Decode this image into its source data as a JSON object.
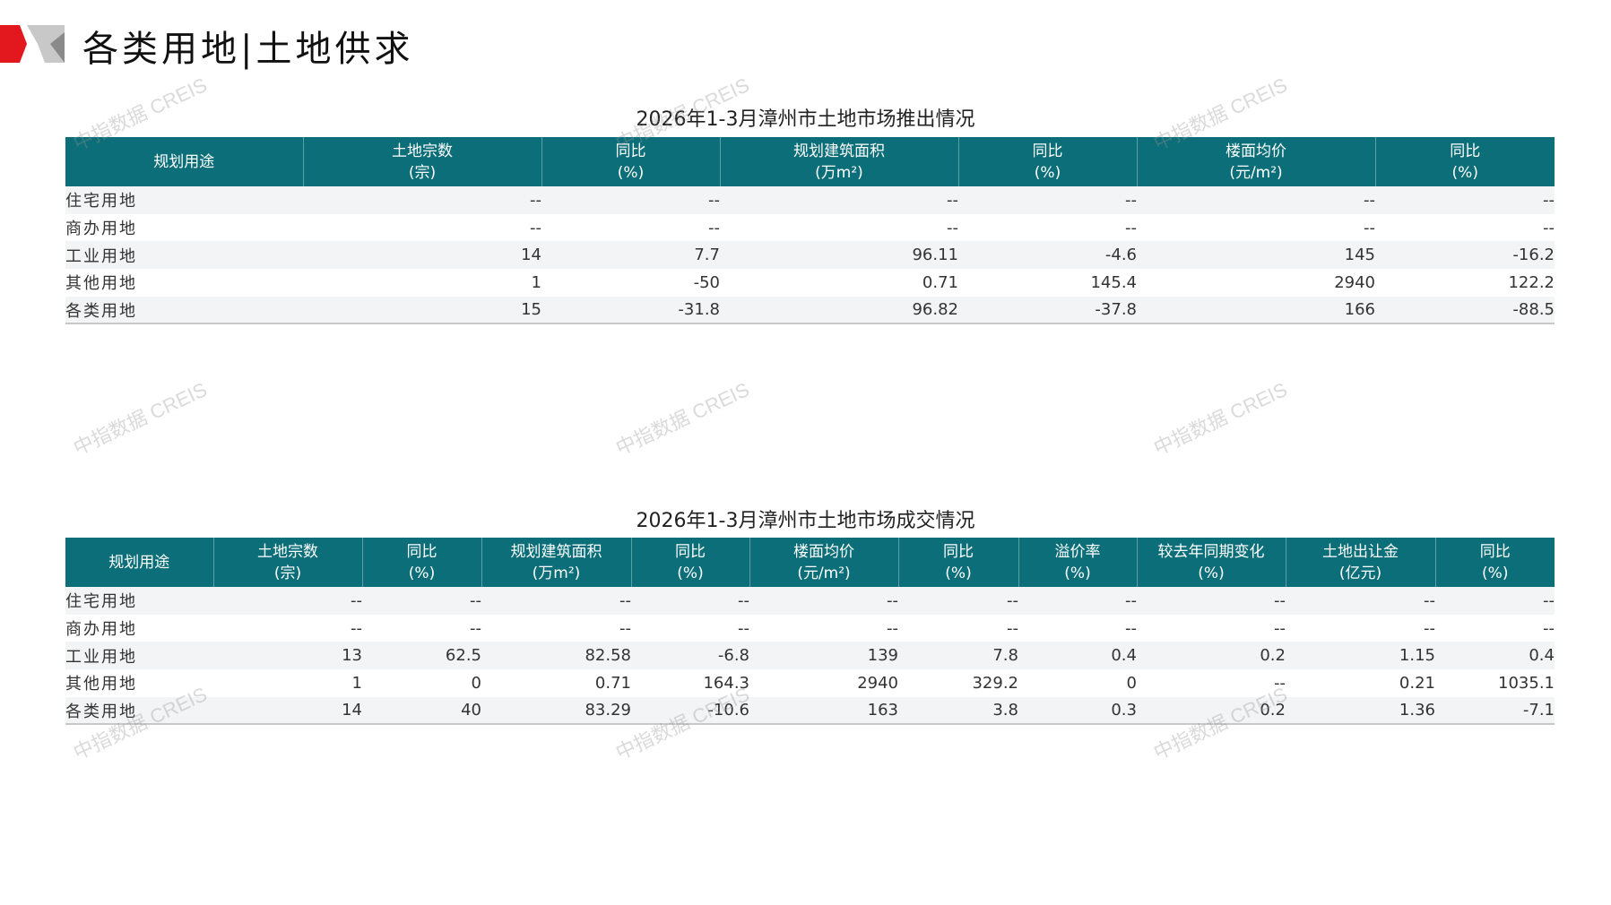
{
  "header": {
    "title": "各类用地|土地供求",
    "accent": "#e3171e",
    "teal": "#0b6e78"
  },
  "watermark": "中指数据 CREIS",
  "supply": {
    "title": "2026年1-3月漳州市土地市场推出情况",
    "columns": [
      [
        "规划用途",
        ""
      ],
      [
        "土地宗数",
        "(宗)"
      ],
      [
        "同比",
        "(%)"
      ],
      [
        "规划建筑面积",
        "(万m²)"
      ],
      [
        "同比",
        "(%)"
      ],
      [
        "楼面均价",
        "(元/m²)"
      ],
      [
        "同比",
        "(%)"
      ]
    ],
    "rows": [
      [
        "住宅用地",
        "--",
        "--",
        "--",
        "--",
        "--",
        "--"
      ],
      [
        "商办用地",
        "--",
        "--",
        "--",
        "--",
        "--",
        "--"
      ],
      [
        "工业用地",
        "14",
        "7.7",
        "96.11",
        "-4.6",
        "145",
        "-16.2"
      ],
      [
        "其他用地",
        "1",
        "-50",
        "0.71",
        "145.4",
        "2940",
        "122.2"
      ],
      [
        "各类用地",
        "15",
        "-31.8",
        "96.82",
        "-37.8",
        "166",
        "-88.5"
      ]
    ]
  },
  "deal": {
    "title": "2026年1-3月漳州市土地市场成交情况",
    "columns": [
      [
        "规划用途",
        ""
      ],
      [
        "土地宗数",
        "(宗)"
      ],
      [
        "同比",
        "(%)"
      ],
      [
        "规划建筑面积",
        "(万m²)"
      ],
      [
        "同比",
        "(%)"
      ],
      [
        "楼面均价",
        "(元/m²)"
      ],
      [
        "同比",
        "(%)"
      ],
      [
        "溢价率",
        "(%)"
      ],
      [
        "较去年同期变化",
        "(%)"
      ],
      [
        "土地出让金",
        "(亿元)"
      ],
      [
        "同比",
        "(%)"
      ]
    ],
    "rows": [
      [
        "住宅用地",
        "--",
        "--",
        "--",
        "--",
        "--",
        "--",
        "--",
        "--",
        "--",
        "--"
      ],
      [
        "商办用地",
        "--",
        "--",
        "--",
        "--",
        "--",
        "--",
        "--",
        "--",
        "--",
        "--"
      ],
      [
        "工业用地",
        "13",
        "62.5",
        "82.58",
        "-6.8",
        "139",
        "7.8",
        "0.4",
        "0.2",
        "1.15",
        "0.4"
      ],
      [
        "其他用地",
        "1",
        "0",
        "0.71",
        "164.3",
        "2940",
        "329.2",
        "0",
        "--",
        "0.21",
        "1035.1"
      ],
      [
        "各类用地",
        "14",
        "40",
        "83.29",
        "-10.6",
        "163",
        "3.8",
        "0.3",
        "0.2",
        "1.36",
        "-7.1"
      ]
    ]
  }
}
